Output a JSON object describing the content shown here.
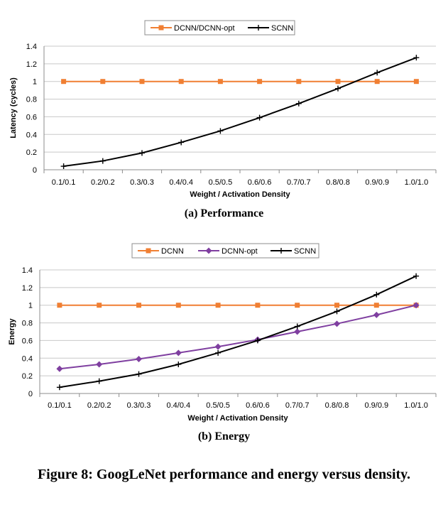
{
  "figure_caption": "Figure 8: GoogLeNet performance and energy versus density.",
  "chart_data": [
    {
      "type": "line",
      "caption": "(a) Performance",
      "xlabel": "Weight / Activation Density",
      "ylabel": "Latency (cycles)",
      "categories": [
        "0.1/0.1",
        "0.2/0.2",
        "0.3/0.3",
        "0.4/0.4",
        "0.5/0.5",
        "0.6/0.6",
        "0.7/0.7",
        "0.8/0.8",
        "0.9/0.9",
        "1.0/1.0"
      ],
      "ylim": [
        0,
        1.4
      ],
      "yticks": [
        "0",
        "0.2",
        "0.4",
        "0.6",
        "0.8",
        "1",
        "1.2",
        "1.4"
      ],
      "grid": true,
      "legend_position": "top-center",
      "series": [
        {
          "name": "DCNN/DCNN-opt",
          "color": "#f07f33",
          "marker": "square",
          "values": [
            1,
            1,
            1,
            1,
            1,
            1,
            1,
            1,
            1,
            1
          ]
        },
        {
          "name": "SCNN",
          "color": "#000000",
          "marker": "plus",
          "values": [
            0.04,
            0.1,
            0.19,
            0.31,
            0.44,
            0.59,
            0.75,
            0.92,
            1.1,
            1.27
          ]
        }
      ]
    },
    {
      "type": "line",
      "caption": "(b) Energy",
      "xlabel": "Weight / Activation Density",
      "ylabel": "Energy",
      "categories": [
        "0.1/0.1",
        "0.2/0.2",
        "0.3/0.3",
        "0.4/0.4",
        "0.5/0.5",
        "0.6/0.6",
        "0.7/0.7",
        "0.8/0.8",
        "0.9/0.9",
        "1.0/1.0"
      ],
      "ylim": [
        0,
        1.4
      ],
      "yticks": [
        "0",
        "0.2",
        "0.4",
        "0.6",
        "0.8",
        "1",
        "1.2",
        "1.4"
      ],
      "grid": true,
      "legend_position": "top-center",
      "series": [
        {
          "name": "DCNN",
          "color": "#f07f33",
          "marker": "square",
          "values": [
            1,
            1,
            1,
            1,
            1,
            1,
            1,
            1,
            1,
            1
          ]
        },
        {
          "name": "DCNN-opt",
          "color": "#7f3fa0",
          "marker": "diamond",
          "values": [
            0.28,
            0.33,
            0.39,
            0.46,
            0.53,
            0.61,
            0.7,
            0.79,
            0.89,
            1.0
          ]
        },
        {
          "name": "SCNN",
          "color": "#000000",
          "marker": "plus",
          "values": [
            0.07,
            0.14,
            0.22,
            0.33,
            0.46,
            0.6,
            0.76,
            0.93,
            1.12,
            1.33
          ]
        }
      ]
    }
  ]
}
